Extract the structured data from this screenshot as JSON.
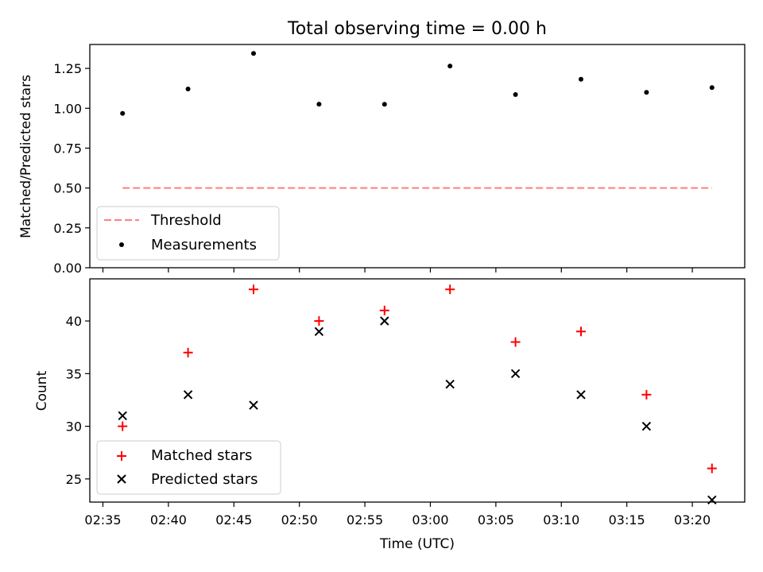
{
  "figure": {
    "title": "Total observing time = 0.00 h",
    "xlabel": "Time (UTC)"
  },
  "chart_data": [
    {
      "type": "scatter",
      "ylabel": "Matched/Predicted stars",
      "ylim": [
        0.0,
        1.4
      ],
      "yticks": [
        "0.00",
        "0.25",
        "0.50",
        "0.75",
        "1.00",
        "1.25"
      ],
      "xlim": [
        "02:34:00",
        "03:24:00"
      ],
      "xticks": [
        "02:35",
        "02:40",
        "02:45",
        "02:50",
        "02:55",
        "03:00",
        "03:05",
        "03:10",
        "03:15",
        "03:20"
      ],
      "x_tick_labels_shown": false,
      "legend_position": "lower-left",
      "series": [
        {
          "name": "Threshold",
          "style": "dashed-line",
          "color": "#ff7f7f",
          "x": [
            "02:36:30",
            "03:21:30"
          ],
          "y": [
            0.5,
            0.5
          ]
        },
        {
          "name": "Measurements",
          "style": "dot",
          "color": "#000000",
          "x": [
            "02:36:30",
            "02:41:30",
            "02:46:30",
            "02:51:30",
            "02:56:30",
            "03:01:30",
            "03:06:30",
            "03:11:30",
            "03:16:30",
            "03:21:30"
          ],
          "y": [
            0.968,
            1.121,
            1.344,
            1.026,
            1.025,
            1.265,
            1.086,
            1.182,
            1.1,
            1.13
          ]
        }
      ]
    },
    {
      "type": "scatter",
      "ylabel": "Count",
      "ylim": [
        22.8,
        44.0
      ],
      "yticks": [
        "25",
        "30",
        "35",
        "40"
      ],
      "xlim": [
        "02:34:00",
        "03:24:00"
      ],
      "xticks": [
        "02:35",
        "02:40",
        "02:45",
        "02:50",
        "02:55",
        "03:00",
        "03:05",
        "03:10",
        "03:15",
        "03:20"
      ],
      "legend_position": "lower-left",
      "series": [
        {
          "name": "Matched stars",
          "marker": "plus",
          "color": "#ff0000",
          "x": [
            "02:36:30",
            "02:41:30",
            "02:46:30",
            "02:51:30",
            "02:56:30",
            "03:01:30",
            "03:06:30",
            "03:11:30",
            "03:16:30",
            "03:21:30"
          ],
          "y": [
            30,
            37,
            43,
            40,
            41,
            43,
            38,
            39,
            33,
            26
          ]
        },
        {
          "name": "Predicted stars",
          "marker": "x",
          "color": "#000000",
          "x": [
            "02:36:30",
            "02:41:30",
            "02:46:30",
            "02:51:30",
            "02:56:30",
            "03:01:30",
            "03:06:30",
            "03:11:30",
            "03:16:30",
            "03:21:30"
          ],
          "y": [
            31,
            33,
            32,
            39,
            40,
            34,
            35,
            33,
            30,
            23
          ]
        }
      ]
    }
  ]
}
